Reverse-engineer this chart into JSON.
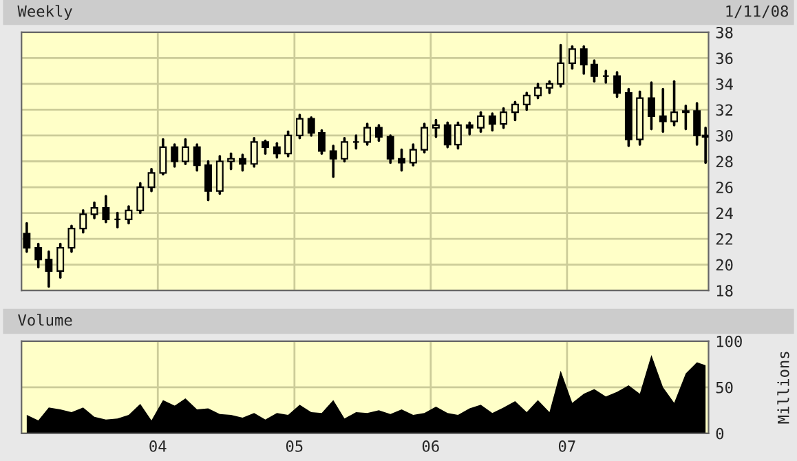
{
  "chart_data": [
    {
      "type": "candlestick",
      "title": "Weekly",
      "annotations": [
        "1/11/08"
      ],
      "color": "#000000",
      "grid": true,
      "tick_labels": "y",
      "xlim": [
        "2003-01-01",
        "2008-01-15"
      ],
      "xticks": [
        {
          "value": "2004-01-01",
          "label": null
        },
        {
          "value": "2005-01-01",
          "label": null
        },
        {
          "value": "2006-01-01",
          "label": null
        },
        {
          "value": "2007-01-01",
          "label": null
        }
      ],
      "ylim": [
        18,
        38
      ],
      "yticks": [
        18,
        20,
        22,
        24,
        26,
        28,
        30,
        32,
        34,
        36,
        38
      ],
      "x": [
        "2003-01-15",
        "2003-02-15",
        "2003-03-15",
        "2003-04-15",
        "2003-05-15",
        "2003-06-15",
        "2003-07-15",
        "2003-08-15",
        "2003-09-15",
        "2003-10-15",
        "2003-11-15",
        "2003-12-15",
        "2004-01-15",
        "2004-02-15",
        "2004-03-15",
        "2004-04-15",
        "2004-05-15",
        "2004-06-15",
        "2004-07-15",
        "2004-08-15",
        "2004-09-15",
        "2004-10-15",
        "2004-11-15",
        "2004-12-15",
        "2005-01-15",
        "2005-02-15",
        "2005-03-15",
        "2005-04-15",
        "2005-05-15",
        "2005-06-15",
        "2005-07-15",
        "2005-08-15",
        "2005-09-15",
        "2005-10-15",
        "2005-11-15",
        "2005-12-15",
        "2006-01-15",
        "2006-02-15",
        "2006-03-15",
        "2006-04-15",
        "2006-05-15",
        "2006-06-15",
        "2006-07-15",
        "2006-08-15",
        "2006-09-15",
        "2006-10-15",
        "2006-11-15",
        "2006-12-15",
        "2007-01-15",
        "2007-02-15",
        "2007-03-15",
        "2007-04-15",
        "2007-05-15",
        "2007-06-15",
        "2007-07-15",
        "2007-08-15",
        "2007-09-15",
        "2007-10-15",
        "2007-11-15",
        "2007-12-15",
        "2008-01-07"
      ],
      "ohlc": [
        [
          22.4,
          23.2,
          21.0,
          21.3
        ],
        [
          21.3,
          21.6,
          19.8,
          20.4
        ],
        [
          20.4,
          21.0,
          18.3,
          19.5
        ],
        [
          19.5,
          21.6,
          19.0,
          21.3
        ],
        [
          21.3,
          23.0,
          21.0,
          22.8
        ],
        [
          22.8,
          24.2,
          22.5,
          23.9
        ],
        [
          23.9,
          24.8,
          23.6,
          24.4
        ],
        [
          24.4,
          25.3,
          23.3,
          23.5
        ],
        [
          23.5,
          24.0,
          22.9,
          23.5
        ],
        [
          23.5,
          24.5,
          23.2,
          24.2
        ],
        [
          24.2,
          26.3,
          24.0,
          26.0
        ],
        [
          26.0,
          27.4,
          25.7,
          27.1
        ],
        [
          27.1,
          29.7,
          27.0,
          29.1
        ],
        [
          29.1,
          29.3,
          27.6,
          28.0
        ],
        [
          28.0,
          29.7,
          27.8,
          29.1
        ],
        [
          29.1,
          29.3,
          27.3,
          27.7
        ],
        [
          27.7,
          28.0,
          25.0,
          25.7
        ],
        [
          25.7,
          28.4,
          25.5,
          28.0
        ],
        [
          28.0,
          28.6,
          27.4,
          28.2
        ],
        [
          28.2,
          28.5,
          27.3,
          27.8
        ],
        [
          27.8,
          29.8,
          27.6,
          29.5
        ],
        [
          29.5,
          29.6,
          28.6,
          29.1
        ],
        [
          29.1,
          29.4,
          28.3,
          28.6
        ],
        [
          28.6,
          30.3,
          28.4,
          30.0
        ],
        [
          30.0,
          31.6,
          29.8,
          31.3
        ],
        [
          31.3,
          31.4,
          30.0,
          30.2
        ],
        [
          30.2,
          30.4,
          28.6,
          28.8
        ],
        [
          28.8,
          29.2,
          26.8,
          28.2
        ],
        [
          28.2,
          29.8,
          28.0,
          29.5
        ],
        [
          29.5,
          30.0,
          29.0,
          29.5
        ],
        [
          29.5,
          30.9,
          29.3,
          30.6
        ],
        [
          30.6,
          30.8,
          29.6,
          29.9
        ],
        [
          29.9,
          30.0,
          27.9,
          28.2
        ],
        [
          28.2,
          28.9,
          27.3,
          27.9
        ],
        [
          27.9,
          29.3,
          27.7,
          28.9
        ],
        [
          28.9,
          30.9,
          28.7,
          30.6
        ],
        [
          30.6,
          31.2,
          29.9,
          30.8
        ],
        [
          30.8,
          31.0,
          29.1,
          29.3
        ],
        [
          29.3,
          31.0,
          29.0,
          30.8
        ],
        [
          30.8,
          31.0,
          30.1,
          30.6
        ],
        [
          30.6,
          31.8,
          30.3,
          31.5
        ],
        [
          31.5,
          31.7,
          30.4,
          30.9
        ],
        [
          30.9,
          32.1,
          30.6,
          31.8
        ],
        [
          31.8,
          32.6,
          31.2,
          32.4
        ],
        [
          32.4,
          33.3,
          32.0,
          33.1
        ],
        [
          33.1,
          34.0,
          32.9,
          33.7
        ],
        [
          33.7,
          34.2,
          33.3,
          34.0
        ],
        [
          34.0,
          37.0,
          33.8,
          35.6
        ],
        [
          35.6,
          36.9,
          35.2,
          36.7
        ],
        [
          36.7,
          36.9,
          34.8,
          35.5
        ],
        [
          35.5,
          35.8,
          34.2,
          34.6
        ],
        [
          34.6,
          35.0,
          34.1,
          34.6
        ],
        [
          34.6,
          34.9,
          33.0,
          33.3
        ],
        [
          33.3,
          33.6,
          29.2,
          29.7
        ],
        [
          29.7,
          33.4,
          29.3,
          32.9
        ],
        [
          32.9,
          34.1,
          30.5,
          31.5
        ],
        [
          31.5,
          33.6,
          30.3,
          31.1
        ],
        [
          31.1,
          34.2,
          30.8,
          31.8
        ],
        [
          31.8,
          32.3,
          30.5,
          31.9
        ],
        [
          31.9,
          32.5,
          29.3,
          30.0
        ],
        [
          30.0,
          30.6,
          27.9,
          29.9
        ]
      ]
    },
    {
      "type": "area",
      "title": "Volume",
      "ylabel": "Millions",
      "grid": true,
      "xlim": [
        "2003-01-01",
        "2008-01-15"
      ],
      "xticks": [
        {
          "value": "2004-01-01",
          "label": "04"
        },
        {
          "value": "2005-01-01",
          "label": "05"
        },
        {
          "value": "2006-01-01",
          "label": "06"
        },
        {
          "value": "2007-01-01",
          "label": "07"
        }
      ],
      "ylim": [
        0,
        100
      ],
      "yticks": [
        0,
        50,
        100
      ],
      "x": [
        "2003-01-15",
        "2003-02-15",
        "2003-03-15",
        "2003-04-15",
        "2003-05-15",
        "2003-06-15",
        "2003-07-15",
        "2003-08-15",
        "2003-09-15",
        "2003-10-15",
        "2003-11-15",
        "2003-12-15",
        "2004-01-15",
        "2004-02-15",
        "2004-03-15",
        "2004-04-15",
        "2004-05-15",
        "2004-06-15",
        "2004-07-15",
        "2004-08-15",
        "2004-09-15",
        "2004-10-15",
        "2004-11-15",
        "2004-12-15",
        "2005-01-15",
        "2005-02-15",
        "2005-03-15",
        "2005-04-15",
        "2005-05-15",
        "2005-06-15",
        "2005-07-15",
        "2005-08-15",
        "2005-09-15",
        "2005-10-15",
        "2005-11-15",
        "2005-12-15",
        "2006-01-15",
        "2006-02-15",
        "2006-03-15",
        "2006-04-15",
        "2006-05-15",
        "2006-06-15",
        "2006-07-15",
        "2006-08-15",
        "2006-09-15",
        "2006-10-15",
        "2006-11-15",
        "2006-12-15",
        "2007-01-15",
        "2007-02-15",
        "2007-03-15",
        "2007-04-15",
        "2007-05-15",
        "2007-06-15",
        "2007-07-15",
        "2007-08-15",
        "2007-09-15",
        "2007-10-15",
        "2007-11-15",
        "2007-12-15",
        "2008-01-07"
      ],
      "series": [
        {
          "color": "#000000",
          "values": [
            20,
            14,
            28,
            26,
            23,
            28,
            18,
            15,
            16,
            20,
            32,
            14,
            36,
            30,
            38,
            26,
            27,
            21,
            20,
            17,
            22,
            15,
            22,
            20,
            31,
            23,
            22,
            36,
            16,
            23,
            22,
            25,
            21,
            26,
            20,
            22,
            29,
            22,
            20,
            27,
            31,
            22,
            28,
            35,
            23,
            36,
            23,
            68,
            33,
            43,
            48,
            40,
            45,
            52,
            43,
            85,
            50,
            33,
            65,
            77,
            74
          ]
        }
      ]
    }
  ]
}
